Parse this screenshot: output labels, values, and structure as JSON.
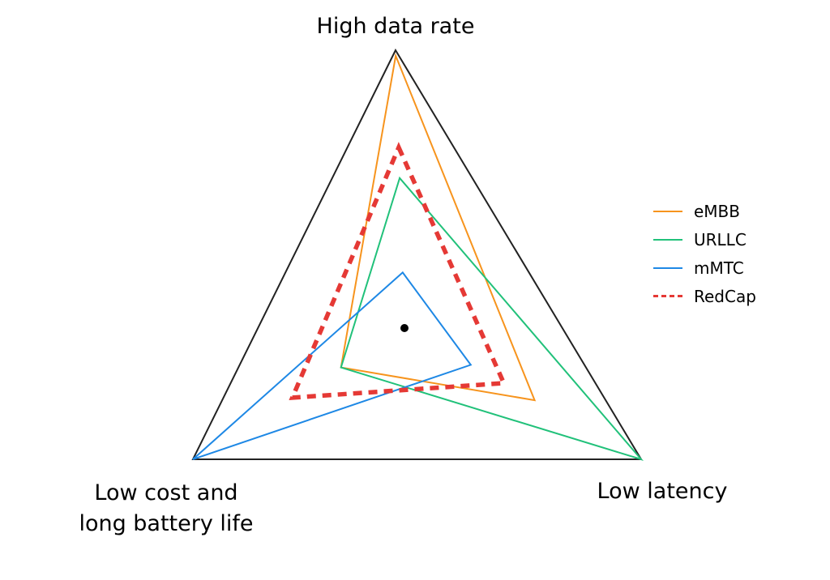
{
  "chart_data": {
    "type": "radar",
    "axes": [
      "High data rate",
      "Low latency",
      "Low cost and long battery life"
    ],
    "axis_label_lines": {
      "High data rate": [
        "High data rate"
      ],
      "Low latency": [
        "Low latency"
      ],
      "Low cost and long battery life": [
        "Low cost and",
        "long battery life"
      ]
    },
    "range": [
      0,
      1
    ],
    "grid": false,
    "legend_position": "right",
    "series": [
      {
        "name": "eMBB",
        "color": "#f7941d",
        "dash": "solid",
        "values": [
          0.98,
          0.55,
          0.3
        ]
      },
      {
        "name": "URLLC",
        "color": "#21c17a",
        "dash": "solid",
        "values": [
          0.54,
          1.0,
          0.3
        ]
      },
      {
        "name": "mMTC",
        "color": "#1e88e5",
        "dash": "solid",
        "values": [
          0.2,
          0.28,
          1.0
        ]
      },
      {
        "name": "RedCap",
        "color": "#e53935",
        "dash": "dashed",
        "values": [
          0.65,
          0.42,
          0.53
        ]
      }
    ]
  }
}
